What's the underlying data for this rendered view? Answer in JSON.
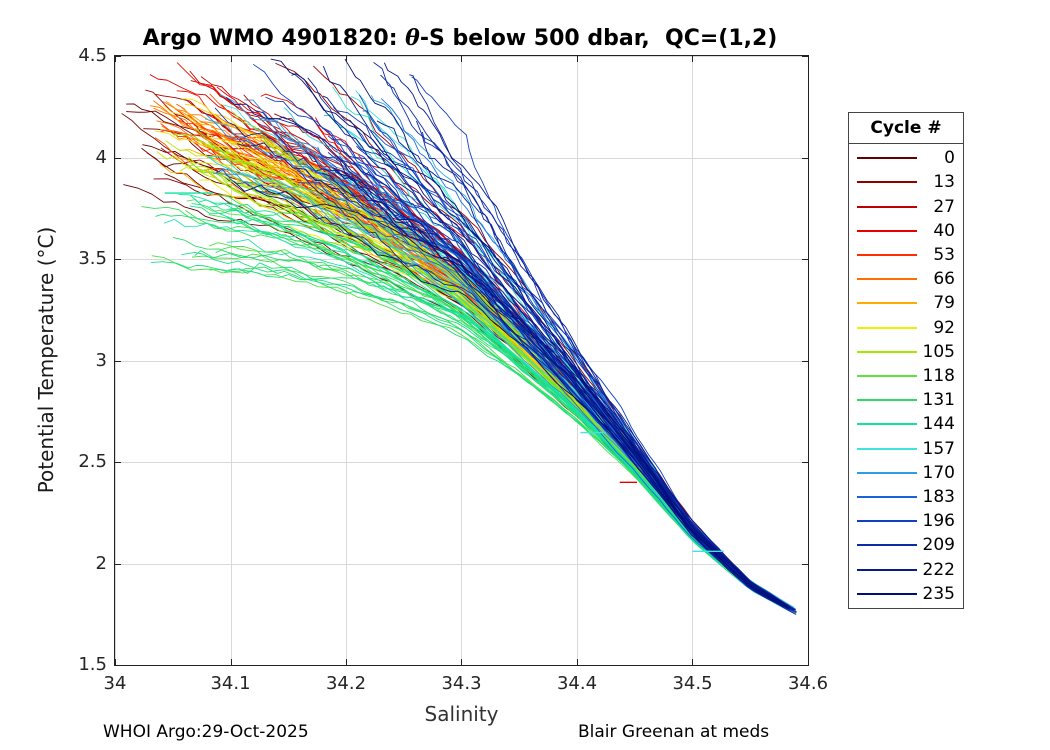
{
  "title": {
    "prefix": "Argo WMO 4901820: ",
    "theta": "θ",
    "suffix": "-S below 500 dbar,  QC=(1,2)"
  },
  "axes": {
    "xlabel": "Salinity",
    "ylabel": "Potential Temperature (°C)",
    "xlim": [
      34,
      34.6
    ],
    "ylim": [
      1.5,
      4.5
    ],
    "x_ticks": [
      34,
      34.1,
      34.2,
      34.3,
      34.4,
      34.5,
      34.6
    ],
    "x_tick_labels": [
      "34",
      "34.1",
      "34.2",
      "34.3",
      "34.4",
      "34.5",
      "34.6"
    ],
    "y_ticks": [
      1.5,
      2,
      2.5,
      3,
      3.5,
      4,
      4.5
    ],
    "y_tick_labels": [
      "1.5",
      "2",
      "2.5",
      "3",
      "3.5",
      "4",
      "4.5"
    ],
    "grid": true,
    "grid_color": "#d9d9d9",
    "axis_color": "#222222"
  },
  "legend": {
    "title": "Cycle #",
    "entries": [
      {
        "label": "0",
        "color": "#600000"
      },
      {
        "label": "13",
        "color": "#8F0000"
      },
      {
        "label": "27",
        "color": "#BE0000"
      },
      {
        "label": "40",
        "color": "#E60000"
      },
      {
        "label": "53",
        "color": "#FF2E00"
      },
      {
        "label": "66",
        "color": "#FF6E00"
      },
      {
        "label": "79",
        "color": "#FFAC00"
      },
      {
        "label": "92",
        "color": "#EEEE00"
      },
      {
        "label": "105",
        "color": "#A6E900"
      },
      {
        "label": "118",
        "color": "#5FE33C"
      },
      {
        "label": "131",
        "color": "#2BDC62"
      },
      {
        "label": "144",
        "color": "#12E39B"
      },
      {
        "label": "157",
        "color": "#3FE4DC"
      },
      {
        "label": "170",
        "color": "#2B9FE4"
      },
      {
        "label": "183",
        "color": "#1A62D9"
      },
      {
        "label": "196",
        "color": "#1240C4"
      },
      {
        "label": "209",
        "color": "#0D2BA8"
      },
      {
        "label": "222",
        "color": "#081A8F"
      },
      {
        "label": "235",
        "color": "#030D77"
      }
    ]
  },
  "footer": {
    "left": "WHOI Argo:29-Oct-2025",
    "right": "Blair Greenan at meds"
  },
  "chart_data": {
    "type": "line",
    "title": "Argo WMO 4901820: theta-S below 500 dbar, QC=(1,2)",
    "xlabel": "Salinity",
    "ylabel": "Potential Temperature (degC)",
    "xlim": [
      34,
      34.6
    ],
    "ylim": [
      1.5,
      4.5
    ],
    "legend_position": "right-outside",
    "colormap": "jet-reversed (cycle 0 = dark red ... cycle 235 = dark navy)",
    "cycle_min": 0,
    "cycle_max": 235,
    "series_note": "~236 Argo profile traces (one per cycle) collapsing from a scattered warm-fresh cluster near (34.05-34.2, 3.8-4.45) onto one tight theta-S line ending at (34.585, 1.75). Early cycles (reds/yellows) start warmest; mid cycles (cyans) fan lowest on the fresh side; late cycles (blues/navy) ride the upper salty envelope.",
    "backbone": [
      [
        34.0,
        4.3
      ],
      [
        34.03,
        4.22
      ],
      [
        34.05,
        4.17
      ],
      [
        34.1,
        4.03
      ],
      [
        34.15,
        3.9
      ],
      [
        34.2,
        3.74
      ],
      [
        34.25,
        3.56
      ],
      [
        34.3,
        3.37
      ],
      [
        34.35,
        3.1
      ],
      [
        34.4,
        2.82
      ],
      [
        34.45,
        2.5
      ],
      [
        34.5,
        2.15
      ],
      [
        34.55,
        1.89
      ],
      [
        34.6,
        1.73
      ]
    ],
    "end_point": [
      34.583,
      1.755
    ],
    "outlier_spikes": [
      {
        "s": [
          34.5,
          34.527
        ],
        "t": 2.06,
        "color": "#3FE4DC"
      },
      {
        "s": [
          34.403,
          34.425
        ],
        "t": 2.645,
        "color": "#3FE4DC"
      },
      {
        "s": [
          34.437,
          34.452
        ],
        "t": 2.4,
        "color": "#E60000"
      },
      {
        "s": [
          34.043,
          34.085
        ],
        "t": 3.825,
        "color": "#12E39B"
      }
    ],
    "render": {
      "seed": 42,
      "n_lines": 200,
      "groups": [
        {
          "name": "dark-red",
          "t": [
            0.0,
            0.05
          ],
          "start_s": [
            34.005,
            34.04
          ],
          "start_t": [
            3.9,
            4.28
          ],
          "bias": -0.03,
          "decay": 1.6,
          "wiggle": 1.0
        },
        {
          "name": "red",
          "t": [
            0.05,
            0.2
          ],
          "start_s": [
            34.02,
            34.18
          ],
          "start_t": [
            4.05,
            4.46
          ],
          "bias": -0.035,
          "decay": 1.4,
          "wiggle": 1.1
        },
        {
          "name": "orange",
          "t": [
            0.2,
            0.3
          ],
          "start_s": [
            34.03,
            34.09
          ],
          "start_t": [
            4.12,
            4.35
          ],
          "bias": -0.032,
          "decay": 1.5,
          "wiggle": 1.0
        },
        {
          "name": "yellow",
          "t": [
            0.3,
            0.38
          ],
          "start_s": [
            34.03,
            34.1
          ],
          "start_t": [
            4.02,
            4.3
          ],
          "bias": -0.03,
          "decay": 1.5,
          "wiggle": 1.0
        },
        {
          "name": "green",
          "t": [
            0.38,
            0.5
          ],
          "start_s": [
            34.03,
            34.13
          ],
          "start_t": [
            3.9,
            4.28
          ],
          "bias": -0.026,
          "decay": 1.6,
          "wiggle": 1.0
        },
        {
          "name": "cyan",
          "t": [
            0.5,
            0.63
          ],
          "start_s": [
            34.02,
            34.1
          ],
          "start_t": [
            3.5,
            3.9
          ],
          "bias": -0.045,
          "decay": 1.8,
          "wiggle": 0.9
        },
        {
          "name": "blue",
          "t": [
            0.63,
            0.82
          ],
          "start_s": [
            34.07,
            34.24
          ],
          "start_t": [
            3.85,
            4.3
          ],
          "bias": 0.035,
          "decay": 2.0,
          "wiggle": 1.2
        },
        {
          "name": "navy",
          "t": [
            0.82,
            1.0
          ],
          "start_s": [
            34.08,
            34.28
          ],
          "start_t": [
            3.8,
            4.45
          ],
          "bias": 0.05,
          "decay": 2.2,
          "wiggle": 1.4
        }
      ]
    }
  }
}
